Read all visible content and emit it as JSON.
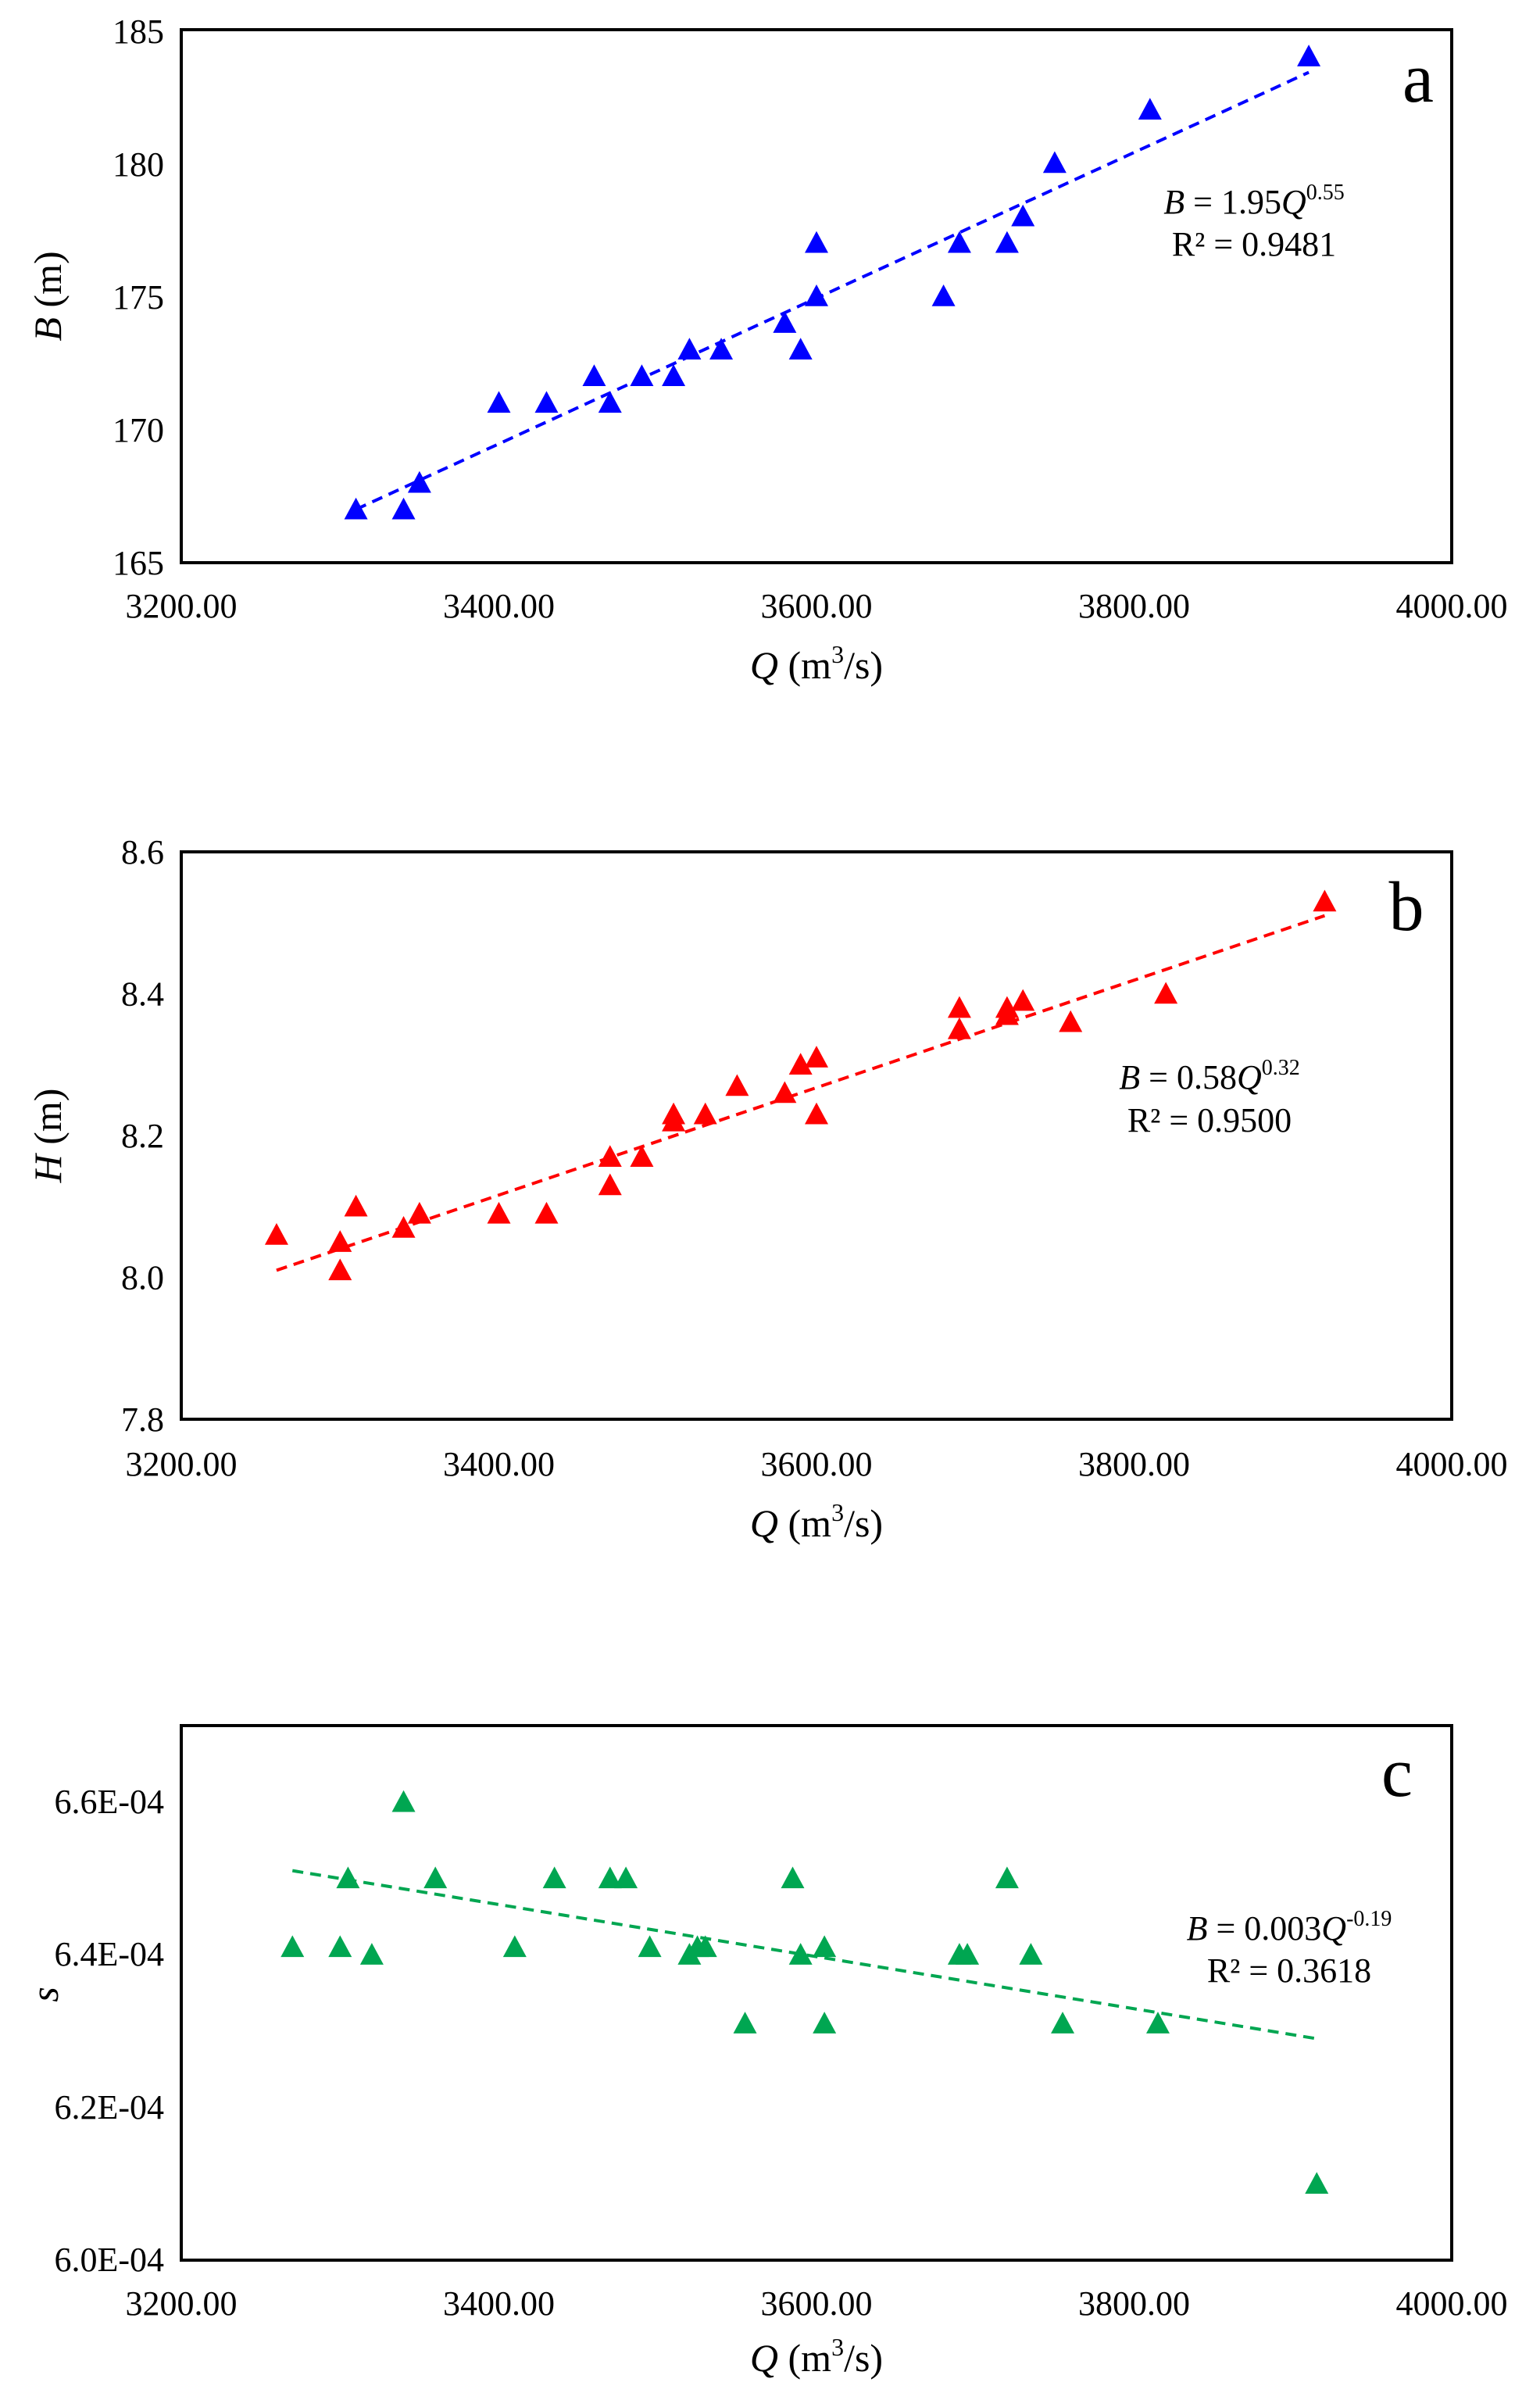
{
  "chart_data": [
    {
      "panel": "a",
      "type": "scatter",
      "xlabel": {
        "var": "Q",
        "unit_pre": " (m",
        "sup": "3",
        "unit_post": "/s)"
      },
      "ylabel": {
        "var": "B",
        "unit": " (m)"
      },
      "xlim": [
        3200,
        4000
      ],
      "ylim": [
        165,
        185
      ],
      "xticks": [
        "3200.00",
        "3400.00",
        "3600.00",
        "3800.00",
        "4000.00"
      ],
      "yticks": [
        "165",
        "170",
        "175",
        "180",
        "185"
      ],
      "color": "#0000ff",
      "points": [
        [
          3310,
          167
        ],
        [
          3340,
          167
        ],
        [
          3350,
          168
        ],
        [
          3400,
          171
        ],
        [
          3430,
          171
        ],
        [
          3460,
          172
        ],
        [
          3470,
          171
        ],
        [
          3490,
          172
        ],
        [
          3510,
          172
        ],
        [
          3520,
          173
        ],
        [
          3540,
          173
        ],
        [
          3580,
          174
        ],
        [
          3590,
          173
        ],
        [
          3600,
          177
        ],
        [
          3600,
          175
        ],
        [
          3680,
          175
        ],
        [
          3690,
          177
        ],
        [
          3720,
          177
        ],
        [
          3730,
          178
        ],
        [
          3750,
          180
        ],
        [
          3810,
          182
        ],
        [
          3910,
          184
        ]
      ],
      "fit": {
        "x1": 3310,
        "y1": 167.0,
        "x2": 3910,
        "y2": 183.4
      },
      "equation": {
        "lhs": "B",
        "mid": " = 1.95",
        "var": "Q",
        "exp": "0.55"
      },
      "r2": "R² = 0.9481"
    },
    {
      "panel": "b",
      "type": "scatter",
      "xlabel": {
        "var": "Q",
        "unit_pre": " (m",
        "sup": "3",
        "unit_post": "/s)"
      },
      "ylabel": {
        "var": "H",
        "unit": " (m)"
      },
      "xlim": [
        3200,
        4000
      ],
      "ylim": [
        7.8,
        8.6
      ],
      "xticks": [
        "3200.00",
        "3400.00",
        "3600.00",
        "3800.00",
        "4000.00"
      ],
      "yticks": [
        "7.8",
        "8.0",
        "8.2",
        "8.4",
        "8.6"
      ],
      "color": "#ff0000",
      "points": [
        [
          3260,
          8.06
        ],
        [
          3300,
          8.05
        ],
        [
          3300,
          8.01
        ],
        [
          3310,
          8.1
        ],
        [
          3340,
          8.07
        ],
        [
          3350,
          8.09
        ],
        [
          3400,
          8.09
        ],
        [
          3430,
          8.09
        ],
        [
          3470,
          8.17
        ],
        [
          3470,
          8.13
        ],
        [
          3490,
          8.17
        ],
        [
          3510,
          8.23
        ],
        [
          3510,
          8.22
        ],
        [
          3530,
          8.23
        ],
        [
          3550,
          8.27
        ],
        [
          3580,
          8.26
        ],
        [
          3590,
          8.3
        ],
        [
          3600,
          8.31
        ],
        [
          3600,
          8.23
        ],
        [
          3690,
          8.38
        ],
        [
          3690,
          8.35
        ],
        [
          3720,
          8.38
        ],
        [
          3720,
          8.37
        ],
        [
          3730,
          8.39
        ],
        [
          3760,
          8.36
        ],
        [
          3820,
          8.4
        ],
        [
          3920,
          8.53
        ]
      ],
      "fit": {
        "x1": 3260,
        "y1": 8.01,
        "x2": 3920,
        "y2": 8.51
      },
      "equation": {
        "lhs": "B",
        "mid": " = 0.58",
        "var": "Q",
        "exp": "0.32"
      },
      "r2": "R² = 0.9500"
    },
    {
      "panel": "c",
      "type": "scatter",
      "xlabel": {
        "var": "Q",
        "unit_pre": " (m",
        "sup": "3",
        "unit_post": "/s)"
      },
      "ylabel": {
        "var": "s",
        "unit": ""
      },
      "xlim": [
        3200,
        4000
      ],
      "ylim": [
        0.0006,
        0.00067
      ],
      "xticks": [
        "3200.00",
        "3400.00",
        "3600.00",
        "3800.00",
        "4000.00"
      ],
      "ytick_values": [
        0.0006,
        0.00062,
        0.00064,
        0.00066
      ],
      "yticks": [
        "6.0E-04",
        "6.2E-04",
        "6.4E-04",
        "6.6E-04"
      ],
      "color": "#00a651",
      "points": [
        [
          3270,
          0.000641
        ],
        [
          3300,
          0.000641
        ],
        [
          3305,
          0.00065
        ],
        [
          3320,
          0.00064
        ],
        [
          3340,
          0.00066
        ],
        [
          3360,
          0.00065
        ],
        [
          3410,
          0.000641
        ],
        [
          3435,
          0.00065
        ],
        [
          3470,
          0.00065
        ],
        [
          3480,
          0.00065
        ],
        [
          3495,
          0.000641
        ],
        [
          3520,
          0.00064
        ],
        [
          3525,
          0.000641
        ],
        [
          3530,
          0.000641
        ],
        [
          3555,
          0.000631
        ],
        [
          3585,
          0.00065
        ],
        [
          3590,
          0.00064
        ],
        [
          3605,
          0.000631
        ],
        [
          3605,
          0.000641
        ],
        [
          3690,
          0.00064
        ],
        [
          3695,
          0.00064
        ],
        [
          3720,
          0.00065
        ],
        [
          3735,
          0.00064
        ],
        [
          3755,
          0.000631
        ],
        [
          3815,
          0.000631
        ],
        [
          3915,
          0.00061
        ]
      ],
      "fit": {
        "x1": 3270,
        "y1": 0.000651,
        "x2": 3915,
        "y2": 0.000629
      },
      "equation": {
        "lhs": "B",
        "mid": " = 0.003",
        "var": "Q",
        "exp": "-0.19"
      },
      "r2": "R² = 0.3618"
    }
  ]
}
